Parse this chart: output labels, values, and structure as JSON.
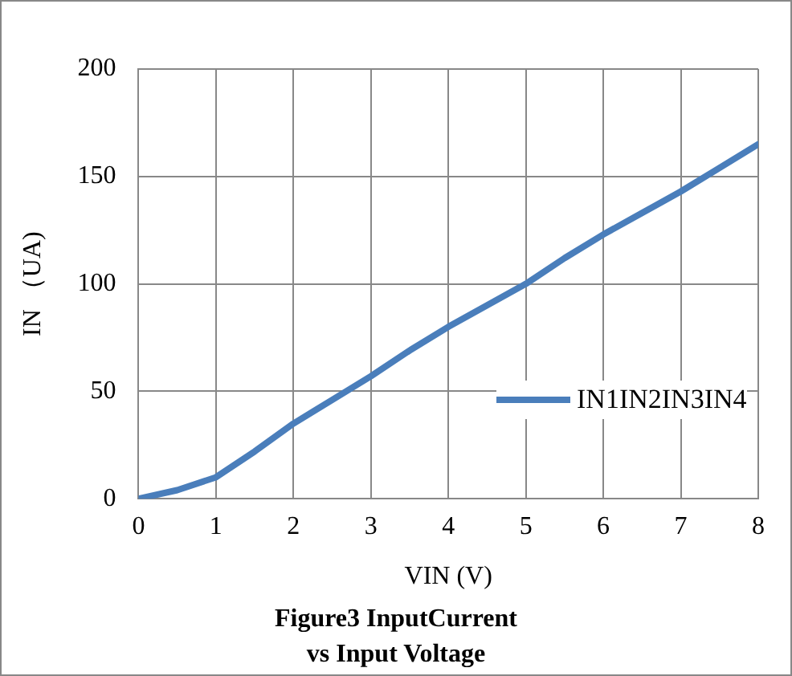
{
  "chart_data": {
    "type": "line",
    "title": "Figure3  InputCurrent\nvs Input Voltage",
    "xlabel": "VIN (V)",
    "ylabel": "IN （UA)",
    "x": [
      0,
      0.5,
      1,
      1.5,
      2,
      2.5,
      3,
      3.5,
      4,
      4.5,
      5,
      5.5,
      6,
      6.5,
      7,
      7.5,
      8
    ],
    "series": [
      {
        "name": "IN1IN2IN3IN4",
        "color": "#4a7ebb",
        "values": [
          0,
          4,
          10,
          22,
          35,
          46,
          57,
          69,
          80,
          90,
          100,
          112,
          123,
          133,
          143,
          154,
          165
        ]
      }
    ],
    "xlim": [
      0,
      8
    ],
    "xticks": [
      0,
      1,
      2,
      3,
      4,
      5,
      6,
      7,
      8
    ],
    "ylim": [
      0,
      200
    ],
    "yticks": [
      0,
      50,
      100,
      150,
      200
    ],
    "grid": true,
    "legend": "right",
    "marker": "none",
    "line_style": "solid"
  }
}
